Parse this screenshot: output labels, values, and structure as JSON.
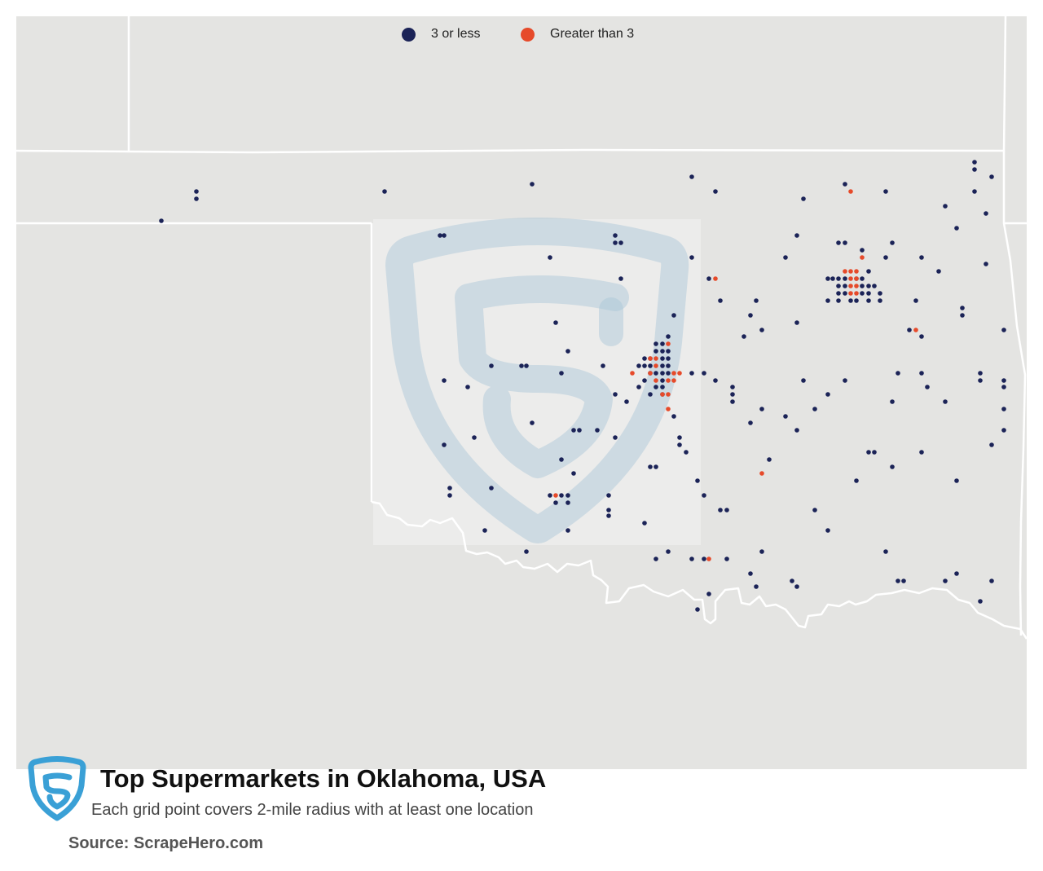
{
  "map": {
    "land_color": "#e4e4e2",
    "border_color": "#ffffff",
    "low_color": "#1b2357",
    "high_color": "#e64a2a",
    "watermark_color": "#a9c6d6"
  },
  "legend": {
    "low_label": "3 or less",
    "high_label": "Greater than 3"
  },
  "footer": {
    "title": "Top Supermarkets in Oklahoma, USA",
    "subtitle": "Each grid point covers 2-mile radius with at least one location",
    "source": "Source: ScrapeHero.com",
    "logo_icon": "scrapehero-shield-logo-icon",
    "logo_color": "#3aa0d6"
  }
}
